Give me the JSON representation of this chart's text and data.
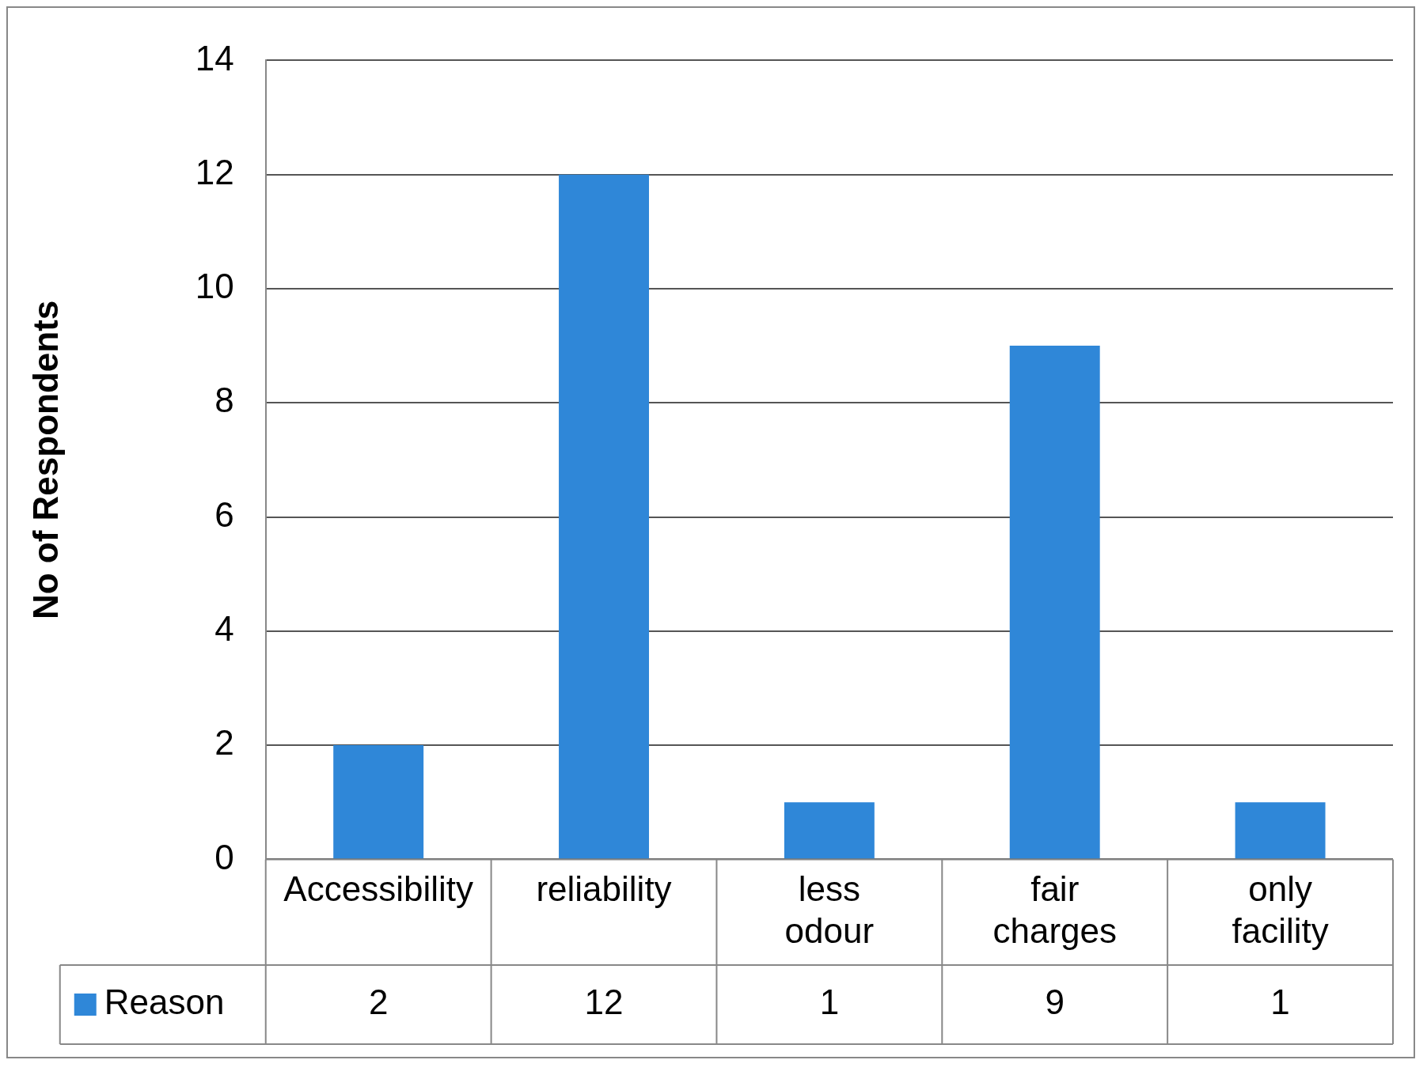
{
  "chart_data": {
    "type": "bar",
    "ylabel": "No of Respondents",
    "categories": [
      "Accessibility",
      "reliability",
      "less odour",
      "fair charges",
      "only facility"
    ],
    "series": [
      {
        "name": "Reason",
        "color": "#2f87d8",
        "values": [
          2,
          12,
          1,
          9,
          1
        ]
      }
    ],
    "ylim": [
      0,
      14
    ],
    "yticks": [
      0,
      2,
      4,
      6,
      8,
      10,
      12,
      14
    ],
    "grid": "y",
    "legend": "bottom",
    "data_labels": true
  }
}
